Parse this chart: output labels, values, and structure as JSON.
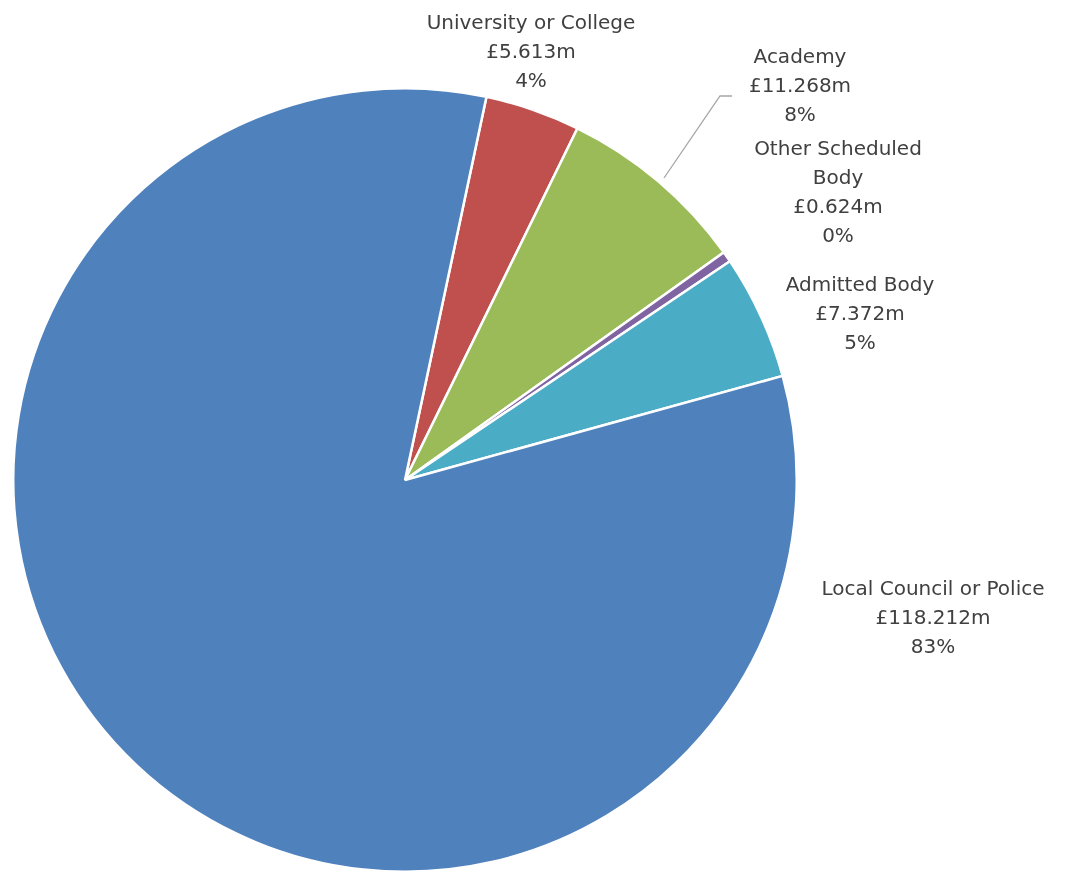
{
  "chart_data": {
    "type": "pie",
    "categories": [
      "University or College",
      "Academy",
      "Other Scheduled Body",
      "Admitted Body",
      "Local Council or Police"
    ],
    "values": [
      5.613,
      11.268,
      0.624,
      7.372,
      118.212
    ],
    "colors": [
      "#c0504d",
      "#9bbb59",
      "#8064a2",
      "#4bacc6",
      "#4f81bd"
    ],
    "value_labels": [
      "£5.613m",
      "£11.268m",
      "£0.624m",
      "£7.372m",
      "£118.212m"
    ],
    "annotations": [
      "4%",
      "8%",
      "0%",
      "5%",
      "83%"
    ],
    "legend": false
  }
}
